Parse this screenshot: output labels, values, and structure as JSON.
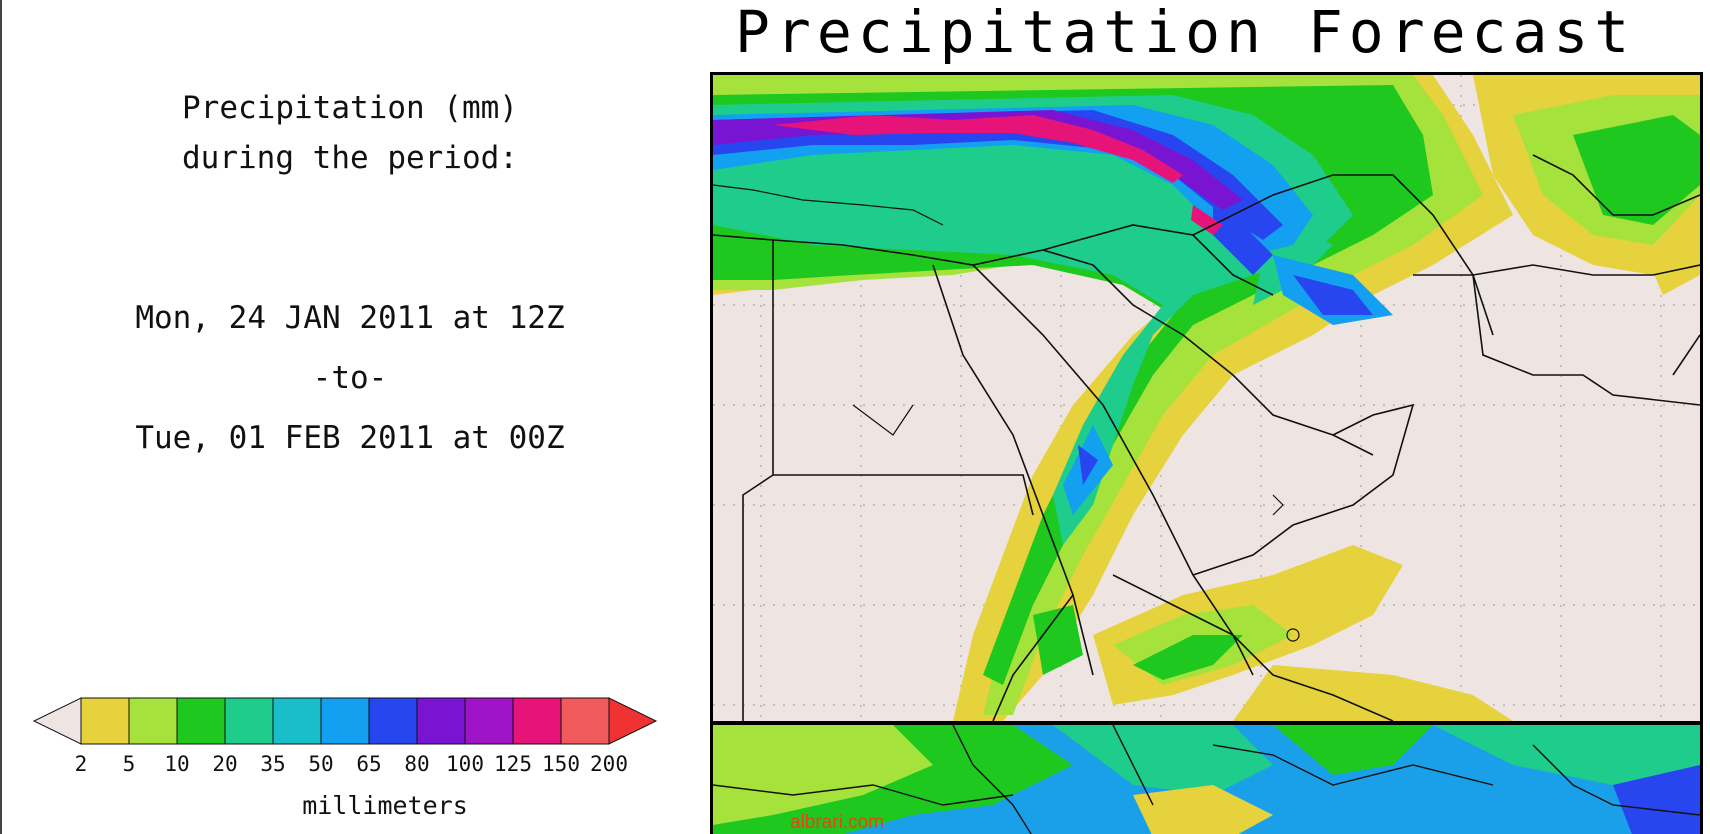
{
  "title": "Precipitation Forecast",
  "period": {
    "heading_line1": "Precipitation (mm)",
    "heading_line2": "during the period:",
    "start": "Mon, 24 JAN 2011 at 12Z",
    "separator": "-to-",
    "end": "Tue, 01 FEB 2011 at 00Z"
  },
  "legend": {
    "units": "millimeters",
    "ticks": [
      "2",
      "5",
      "10",
      "20",
      "35",
      "50",
      "65",
      "80",
      "100",
      "125",
      "150",
      "200"
    ],
    "colors": [
      "#e6d23c",
      "#a5e23c",
      "#1ec81e",
      "#1ecc8c",
      "#1abecb",
      "#14a0f0",
      "#2846f0",
      "#7814d2",
      "#a014c8",
      "#e61478",
      "#f05a5a"
    ],
    "below_color": "#eee5e2",
    "above_color": "#f03232"
  },
  "watermark": "albrari.com"
}
